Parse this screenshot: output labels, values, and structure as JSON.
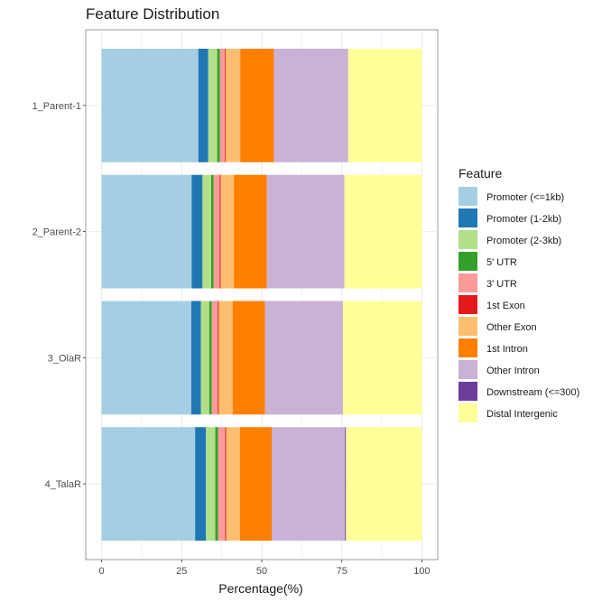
{
  "chart_data": {
    "type": "bar",
    "orientation": "horizontal",
    "stacked": true,
    "title": "Feature Distribution",
    "xlabel": "Percentage(%)",
    "ylabel": "",
    "xlim": [
      0,
      100
    ],
    "xticks": [
      0,
      25,
      50,
      75,
      100
    ],
    "grid": true,
    "legend_position": "right",
    "legend_title": "Feature",
    "categories": [
      "1_Parent-1",
      "2_Parent-2",
      "3_OlaR",
      "4_TalaR"
    ],
    "series": [
      {
        "name": "Promoter (<=1kb)",
        "color": "#A6CEE3",
        "values": [
          30.2,
          28.1,
          28.0,
          29.2
        ]
      },
      {
        "name": "Promoter (1-2kb)",
        "color": "#1F78B4",
        "values": [
          3.1,
          3.4,
          3.0,
          3.4
        ]
      },
      {
        "name": "Promoter (2-3kb)",
        "color": "#B2DF8A",
        "values": [
          2.8,
          2.7,
          2.6,
          2.9
        ]
      },
      {
        "name": "5' UTR",
        "color": "#33A02C",
        "values": [
          0.8,
          0.8,
          0.8,
          0.9
        ]
      },
      {
        "name": "3' UTR",
        "color": "#FB9A99",
        "values": [
          1.6,
          1.9,
          1.9,
          2.2
        ]
      },
      {
        "name": "1st Exon",
        "color": "#E31A1C",
        "values": [
          0.3,
          0.3,
          0.3,
          0.3
        ]
      },
      {
        "name": "Other Exon",
        "color": "#FDBF6F",
        "values": [
          4.5,
          4.1,
          4.3,
          4.3
        ]
      },
      {
        "name": "1st Intron",
        "color": "#FF7F00",
        "values": [
          10.5,
          10.3,
          10.1,
          9.9
        ]
      },
      {
        "name": "Other Intron",
        "color": "#CAB2D6",
        "values": [
          23.2,
          24.2,
          24.4,
          22.9
        ]
      },
      {
        "name": "Downstream (<=300)",
        "color": "#6A3D9A",
        "values": [
          0.0,
          0.0,
          0.0,
          0.3
        ]
      },
      {
        "name": "Distal Intergenic",
        "color": "#FFFF99",
        "values": [
          23.0,
          24.2,
          24.6,
          23.7
        ]
      }
    ]
  }
}
